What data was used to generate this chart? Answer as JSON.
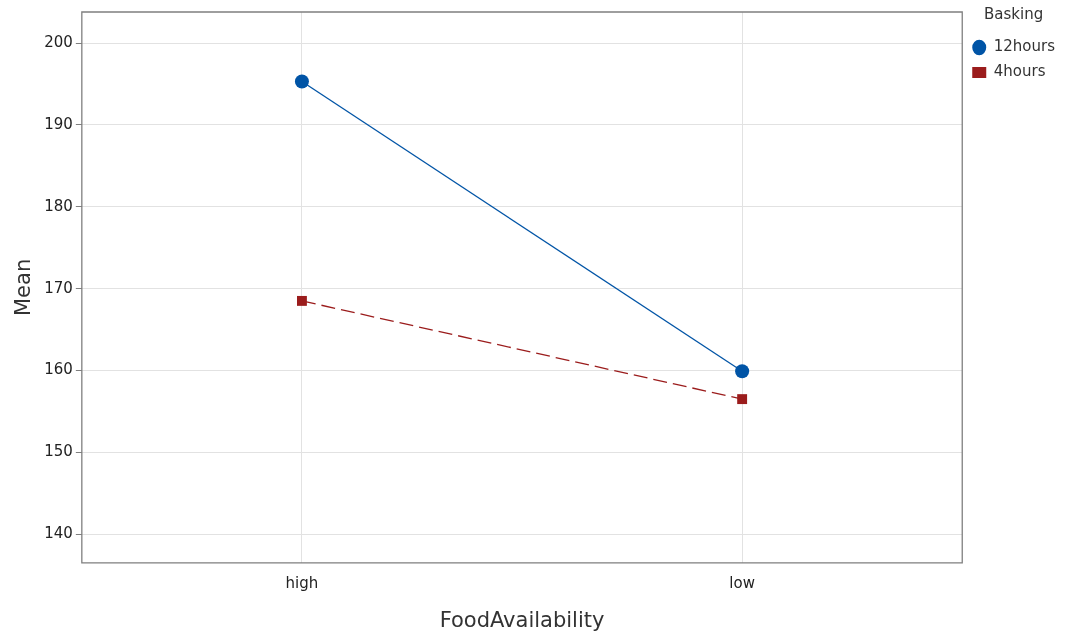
{
  "chart_data": {
    "type": "line",
    "xlabel": "FoodAvailability",
    "ylabel": "Mean",
    "legend_title": "Basking",
    "categories": [
      "high",
      "low"
    ],
    "series": [
      {
        "name": "12hours",
        "color": "#0054a6",
        "values": [
          195.3,
          159.9
        ],
        "marker": "circle",
        "line_style": "solid"
      },
      {
        "name": "4hours",
        "color": "#9b1c1c",
        "values": [
          168.5,
          156.5
        ],
        "marker": "square",
        "line_style": "dashed"
      }
    ],
    "ylim": [
      136.5,
      203.8
    ],
    "yticks": [
      140,
      150,
      160,
      170,
      180,
      190,
      200
    ],
    "grid": true,
    "legend": "top right"
  }
}
